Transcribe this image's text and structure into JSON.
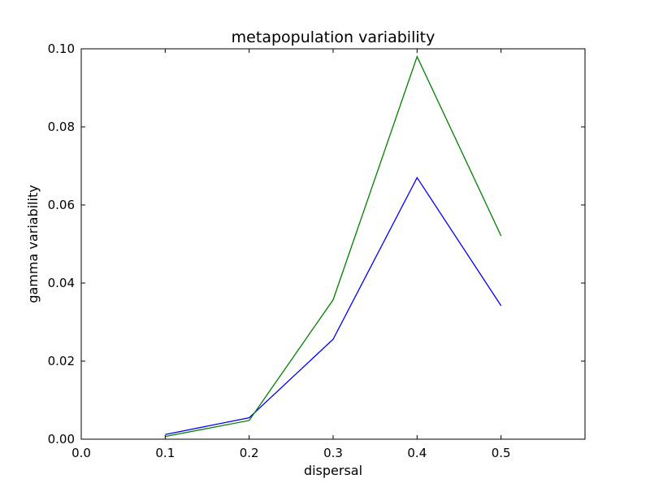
{
  "chart_data": {
    "type": "line",
    "title": "metapopulation variability",
    "xlabel": "dispersal",
    "ylabel": "gamma variability",
    "xlim": [
      0.0,
      0.6
    ],
    "ylim": [
      0.0,
      0.1
    ],
    "xticks": [
      0.0,
      0.1,
      0.2,
      0.3,
      0.4,
      0.5
    ],
    "xtick_labels": [
      "0.0",
      "0.1",
      "0.2",
      "0.3",
      "0.4",
      "0.5"
    ],
    "yticks": [
      0.0,
      0.02,
      0.04,
      0.06,
      0.08,
      0.1
    ],
    "ytick_labels": [
      "0.00",
      "0.02",
      "0.04",
      "0.06",
      "0.08",
      "0.10"
    ],
    "grid": false,
    "x": [
      0.1,
      0.2,
      0.3,
      0.4,
      0.5
    ],
    "series": [
      {
        "values": [
          0.0012,
          0.0055,
          0.0256,
          0.067,
          0.0342
        ],
        "color": "#0000ff"
      },
      {
        "values": [
          0.0007,
          0.0048,
          0.0357,
          0.098,
          0.0521
        ],
        "color": "#008000"
      }
    ]
  }
}
